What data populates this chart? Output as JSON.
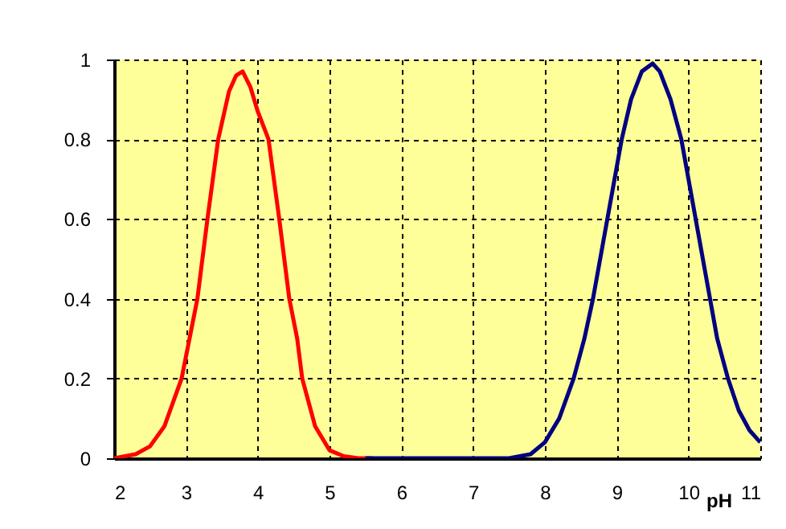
{
  "chart_data": {
    "type": "line",
    "xlabel": "pH",
    "xlim": [
      2,
      11
    ],
    "xticks": [
      2,
      3,
      4,
      5,
      6,
      7,
      8,
      9,
      10,
      11
    ],
    "ylim": [
      0,
      1
    ],
    "yticks": [
      0,
      0.2,
      0.4,
      0.6,
      0.8,
      1
    ],
    "grid": true,
    "line_style": "solid",
    "marker": "none",
    "series": [
      {
        "color": "#ff0000",
        "x": [
          2,
          2.3,
          2.5,
          2.7,
          2.94,
          3.05,
          3.16,
          3.3,
          3.45,
          3.6,
          3.7,
          3.79,
          3.9,
          4.0,
          4.15,
          4.3,
          4.44,
          4.55,
          4.62,
          4.8,
          5.0,
          5.2,
          5.4,
          5.6
        ],
        "values": [
          0,
          0.01,
          0.03,
          0.08,
          0.2,
          0.3,
          0.4,
          0.6,
          0.8,
          0.92,
          0.96,
          0.97,
          0.93,
          0.87,
          0.8,
          0.6,
          0.4,
          0.3,
          0.2,
          0.08,
          0.02,
          0.005,
          0,
          0
        ]
      },
      {
        "color": "#000080",
        "x": [
          5.5,
          7.5,
          7.8,
          8.0,
          8.2,
          8.4,
          8.55,
          8.67,
          8.8,
          8.95,
          9.07,
          9.2,
          9.35,
          9.5,
          9.6,
          9.75,
          9.9,
          10.05,
          10.15,
          10.3,
          10.4,
          10.55,
          10.7,
          10.85,
          11
        ],
        "values": [
          0,
          0,
          0.01,
          0.04,
          0.1,
          0.2,
          0.3,
          0.4,
          0.53,
          0.68,
          0.8,
          0.9,
          0.97,
          0.99,
          0.97,
          0.9,
          0.8,
          0.65,
          0.55,
          0.4,
          0.3,
          0.2,
          0.12,
          0.07,
          0.04
        ]
      }
    ]
  }
}
